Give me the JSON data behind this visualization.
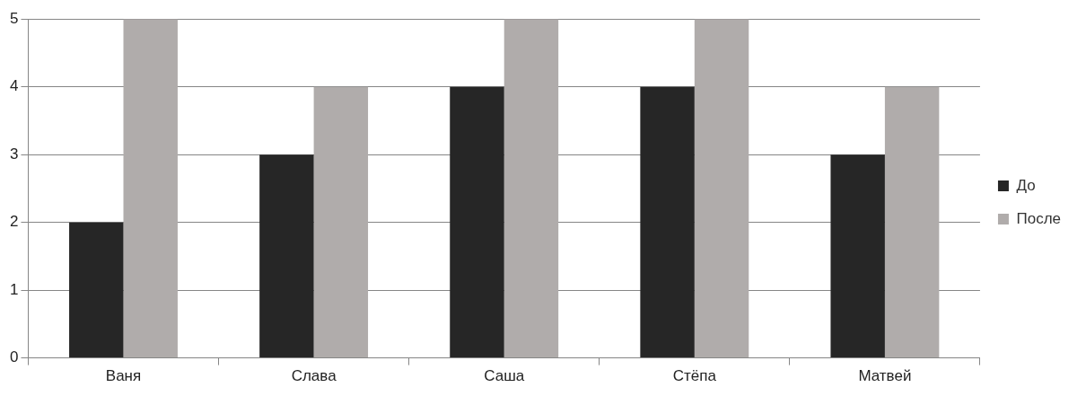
{
  "chart_data": {
    "type": "bar",
    "categories": [
      "Ваня",
      "Слава",
      "Саша",
      "Стёпа",
      "Матвей"
    ],
    "series": [
      {
        "name": "До",
        "color": "#262626",
        "values": [
          2,
          3,
          4,
          4,
          3
        ]
      },
      {
        "name": "После",
        "color": "#b0acab",
        "values": [
          5,
          4,
          5,
          5,
          4
        ]
      }
    ],
    "ylim": [
      0,
      5
    ],
    "yticks": [
      0,
      1,
      2,
      3,
      4,
      5
    ],
    "grid": "y",
    "legend": "right"
  }
}
